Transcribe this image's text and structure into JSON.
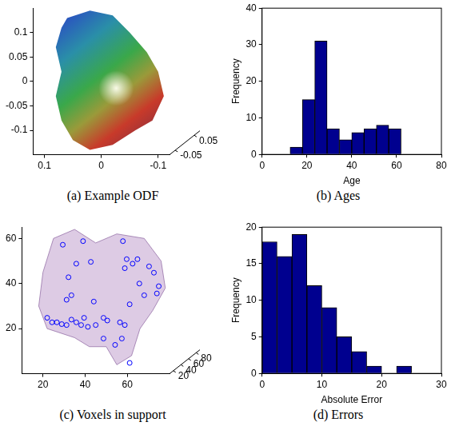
{
  "chart_data": [
    {
      "type": "surface",
      "title": "(a) Example ODF",
      "xlim": [
        0.12,
        -0.12
      ],
      "xticks": [
        0.1,
        0,
        -0.1
      ],
      "ylim": [
        -0.15,
        0.15
      ],
      "yticks": [
        -0.1,
        -0.05,
        0,
        0.05,
        0.1
      ],
      "zlim": [
        -0.08,
        0.08
      ],
      "zticks": [
        -0.05,
        0.05
      ],
      "grid": false,
      "surface": {
        "x": [
          0.06,
          0.02,
          -0.02,
          -0.05,
          -0.08,
          -0.1,
          -0.11,
          -0.09,
          -0.06,
          -0.02,
          0.02,
          0.05,
          0.07,
          0.08,
          0.07,
          0.08,
          0.07
        ],
        "y": [
          0.13,
          0.145,
          0.135,
          0.1,
          0.06,
          0.02,
          -0.03,
          -0.08,
          -0.1,
          -0.13,
          -0.14,
          -0.12,
          -0.08,
          -0.03,
          0.02,
          0.07,
          0.11
        ]
      }
    },
    {
      "type": "histogram",
      "title": "(b) Ages",
      "xlabel": "Age",
      "ylabel": "Frequency",
      "bins": [
        12.5,
        18,
        23.5,
        29,
        34.5,
        40,
        45.5,
        51,
        56.5,
        62
      ],
      "values": [
        2,
        15,
        31,
        7,
        4,
        6,
        7,
        8,
        7
      ],
      "color": "#00008f",
      "xlim": [
        0,
        80
      ],
      "xticks": [
        0,
        20,
        40,
        60,
        80
      ],
      "ylim": [
        0,
        40
      ],
      "yticks": [
        0,
        10,
        20,
        30,
        40
      ],
      "grid": false
    },
    {
      "type": "scatter",
      "title": "(c) Voxels in support",
      "xlim": [
        10,
        80
      ],
      "xticks": [
        20,
        40,
        60
      ],
      "ylim": [
        0,
        65
      ],
      "yticks": [
        20,
        40,
        60
      ],
      "zlim": [
        10,
        90
      ],
      "zticks": [
        20,
        40,
        60,
        80
      ],
      "grid": false,
      "color": "#0000ff",
      "marker": "circle",
      "x": [
        29.4,
        35.8,
        39.0,
        57.9,
        59.7,
        62.5,
        64.8,
        58.8,
        72.6,
        74.9,
        74.0,
        68.0,
        32.1,
        33.5,
        31.2,
        44.1,
        39.5,
        22.0,
        24.3,
        26.6,
        28.9,
        31.2,
        33.5,
        35.8,
        38.1,
        41.3,
        45.0,
        48.7,
        50.5,
        56.5,
        58.8,
        54.2,
        57.4,
        48.7,
        61.1,
        61.1,
        42.7,
        65.7,
        70.3
      ],
      "values": [
        57.2,
        48.8,
        58.8,
        58.8,
        50.8,
        48.8,
        50.8,
        46.8,
        44.8,
        38.8,
        35.6,
        34.8,
        42.8,
        34.8,
        32.8,
        32.0,
        24.8,
        24.8,
        22.8,
        22.8,
        22.0,
        21.6,
        24.0,
        22.8,
        21.6,
        20.8,
        21.6,
        24.8,
        23.6,
        22.8,
        21.6,
        12.8,
        15.6,
        15.6,
        4.8,
        30.8,
        49.6,
        40.0,
        47.6
      ],
      "surface": {
        "x": [
          25,
          35,
          45,
          55,
          68,
          76,
          78,
          72,
          66,
          62,
          55,
          50,
          42,
          35,
          22,
          18,
          20
        ],
        "y": [
          60,
          64,
          58,
          62,
          60,
          50,
          38,
          28,
          20,
          8,
          4,
          12,
          12,
          16,
          20,
          30,
          45
        ]
      }
    },
    {
      "type": "histogram",
      "title": "(d) Errors",
      "xlabel": "Absolute Error",
      "ylabel": "Frequency",
      "bins": [
        0,
        2.5,
        5,
        7.5,
        10,
        12.5,
        15,
        17.5,
        20,
        22.5,
        25
      ],
      "values": [
        18,
        16,
        19,
        12,
        9,
        5,
        3,
        1,
        0,
        1
      ],
      "color": "#00008f",
      "xlim": [
        0,
        30
      ],
      "xticks": [
        0,
        10,
        20,
        30
      ],
      "ylim": [
        0,
        20
      ],
      "yticks": [
        0,
        5,
        10,
        15,
        20
      ],
      "grid": false
    }
  ]
}
